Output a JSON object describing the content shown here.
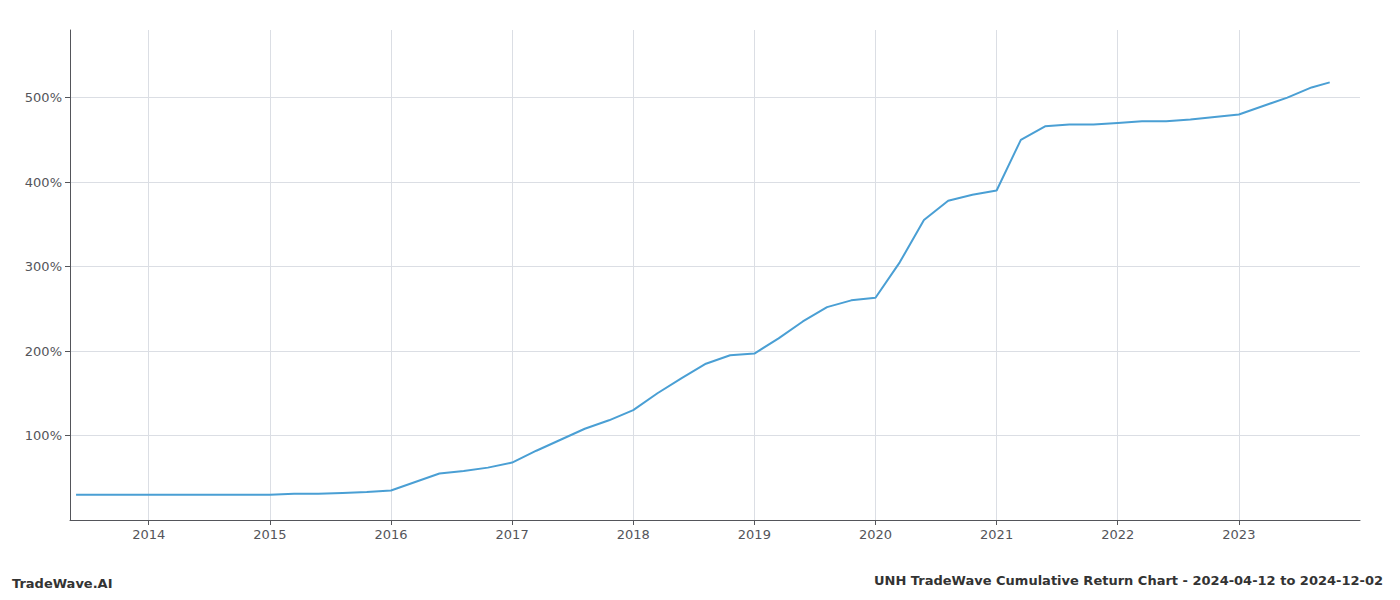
{
  "chart_data": {
    "type": "line",
    "title": "UNH TradeWave Cumulative Return Chart - 2024-04-12 to 2024-12-02",
    "annotations": [
      "TradeWave.AI"
    ],
    "color": "#4a9fd4",
    "x": [
      2013.4,
      2013.6,
      2013.8,
      2014.0,
      2014.2,
      2014.4,
      2014.6,
      2014.8,
      2015.0,
      2015.2,
      2015.4,
      2015.6,
      2015.8,
      2016.0,
      2016.2,
      2016.4,
      2016.6,
      2016.8,
      2017.0,
      2017.2,
      2017.4,
      2017.6,
      2017.8,
      2018.0,
      2018.2,
      2018.4,
      2018.6,
      2018.8,
      2019.0,
      2019.2,
      2019.4,
      2019.6,
      2019.8,
      2020.0,
      2020.2,
      2020.4,
      2020.6,
      2020.8,
      2021.0,
      2021.2,
      2021.4,
      2021.6,
      2021.8,
      2022.0,
      2022.2,
      2022.4,
      2022.6,
      2022.8,
      2023.0,
      2023.2,
      2023.4,
      2023.6,
      2023.75
    ],
    "values": [
      30,
      30,
      30,
      30,
      30,
      30,
      30,
      30,
      30,
      31,
      31,
      32,
      33,
      35,
      45,
      55,
      58,
      62,
      68,
      82,
      95,
      108,
      118,
      130,
      150,
      168,
      185,
      195,
      197,
      215,
      235,
      252,
      260,
      263,
      305,
      355,
      378,
      385,
      390,
      450,
      466,
      468,
      468,
      470,
      472,
      472,
      474,
      477,
      480,
      490,
      500,
      512,
      518
    ],
    "xlim": [
      2013.35,
      2024.0
    ],
    "xticks": [
      2014,
      2015,
      2016,
      2017,
      2018,
      2019,
      2020,
      2021,
      2022,
      2023
    ],
    "ylim": [
      0,
      580
    ],
    "yticks": [
      {
        "value": 100,
        "label": "100%"
      },
      {
        "value": 200,
        "label": "200%"
      },
      {
        "value": 300,
        "label": "300%"
      },
      {
        "value": 400,
        "label": "400%"
      },
      {
        "value": 500,
        "label": "500%"
      }
    ],
    "grid": true
  }
}
